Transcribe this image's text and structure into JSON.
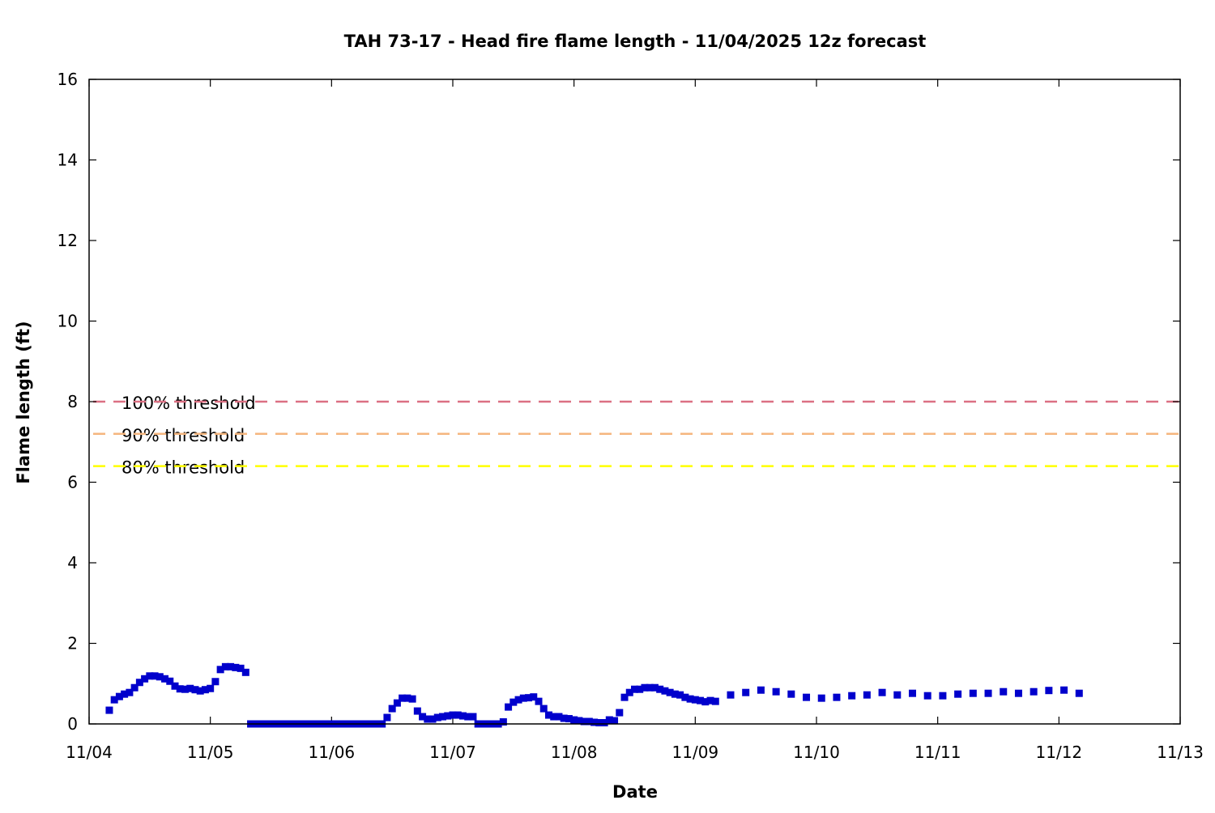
{
  "chart_data": {
    "type": "scatter",
    "title": "TAH 73-17 - Head fire flame length - 11/04/2025 12z forecast",
    "xlabel": "Date",
    "ylabel": "Flame length (ft)",
    "xlim": [
      "2025-11-04 00:00",
      "2025-11-13 00:00"
    ],
    "ylim": [
      0,
      16
    ],
    "x_ticks": [
      "11/04",
      "11/05",
      "11/06",
      "11/07",
      "11/08",
      "11/09",
      "11/10",
      "11/11",
      "11/12",
      "11/13"
    ],
    "y_ticks": [
      0,
      2,
      4,
      6,
      8,
      10,
      12,
      14,
      16
    ],
    "grid": false,
    "legend_placement": "inline-left",
    "marker_color": "#0000cc",
    "series": [
      {
        "start": "2025-11-04 04:00",
        "step_hours": 1,
        "values": [
          0.34,
          0.6,
          0.68,
          0.74,
          0.78,
          0.9,
          1.03,
          1.12,
          1.19,
          1.19,
          1.17,
          1.12,
          1.06,
          0.94,
          0.87,
          0.86,
          0.88,
          0.85,
          0.82,
          0.85,
          0.88,
          1.05,
          1.35,
          1.42,
          1.42,
          1.4,
          1.38,
          1.28,
          0,
          0,
          0,
          0,
          0,
          0,
          0,
          0,
          0,
          0,
          0,
          0,
          0,
          0,
          0,
          0,
          0,
          0,
          0,
          0,
          0,
          0,
          0,
          0,
          0,
          0,
          0,
          0.16,
          0.38,
          0.52,
          0.64,
          0.64,
          0.62,
          0.32,
          0.18,
          0.12,
          0.12,
          0.16,
          0.18,
          0.2,
          0.22,
          0.22,
          0.2,
          0.18,
          0.18,
          0,
          0,
          0,
          0,
          0,
          0.05,
          0.42,
          0.54,
          0.6,
          0.64,
          0.65,
          0.67,
          0.56,
          0.38,
          0.22,
          0.18,
          0.18,
          0.14,
          0.13,
          0.1,
          0.08,
          0.06,
          0.06,
          0.04,
          0.03,
          0.03,
          0.1,
          0.08,
          0.28,
          0.66,
          0.78,
          0.86,
          0.86,
          0.9,
          0.9,
          0.9,
          0.86,
          0.82,
          0.78,
          0.74,
          0.72,
          0.66,
          0.62,
          0.6,
          0.58,
          0.55,
          0.58,
          0.56
        ]
      },
      {
        "start": "2025-11-09 07:00",
        "step_hours": 3,
        "values": [
          0.72,
          0.78,
          0.84,
          0.8,
          0.74,
          0.66,
          0.64,
          0.66,
          0.7,
          0.72,
          0.78,
          0.72,
          0.76,
          0.7,
          0.7,
          0.74,
          0.76,
          0.76,
          0.8,
          0.76,
          0.8,
          0.83,
          0.84,
          0.76
        ]
      }
    ],
    "thresholds": [
      {
        "label": "100% threshold",
        "value": 8.0,
        "color": "#db7083"
      },
      {
        "label": "90% threshold",
        "value": 7.2,
        "color": "#f5b67e"
      },
      {
        "label": "80% threshold",
        "value": 6.4,
        "color": "#ffff00"
      }
    ]
  }
}
